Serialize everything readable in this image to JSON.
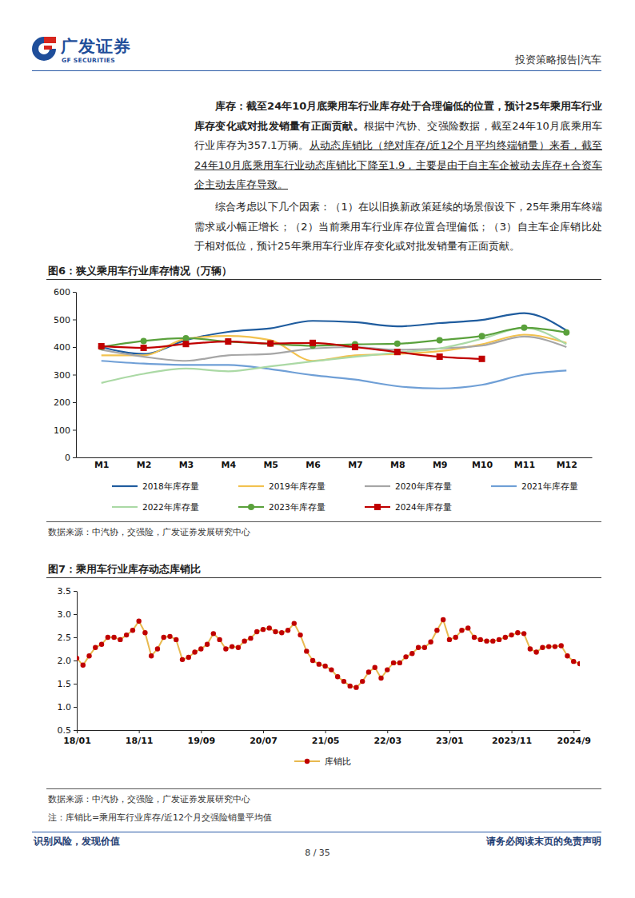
{
  "header": {
    "logo_cn": "广发证券",
    "logo_en": "GF SECURITIES",
    "report_type": "投资策略报告|汽车"
  },
  "paragraphs": [
    {
      "bold": "库存：截至24年10月底乘用车行业库存处于合理偏低的位置，预计25年乘用车行业库存变化或对批发销量有正面贡献。",
      "normal": "根据中汽协、交强险数据，截至24年10月底乘用车行业库存为357.1万辆。",
      "underline": "从动态库销比（绝对库存/近12个月平均终端销量）来看，截至24年10月底乘用车行业动态库销比下降至1.9，主要是由于自主车企被动去库存+合资车企主动去库存导致。"
    },
    {
      "text": "综合考虑以下几个因素：（1）在以旧换新政策延续的场景假设下，25年乘用车终端需求或小幅正增长；（2）当前乘用车行业库存位置合理偏低；（3）自主车企库销比处于相对低位，预计25年乘用车行业库存变化或对批发销量有正面贡献。"
    }
  ],
  "footer": {
    "left": "识别风险，发现价值",
    "page": "8 / 35",
    "right": "请务必阅读末页的免责声明"
  },
  "chart_data": [
    {
      "type": "line",
      "title": "图6：狭义乘用车行业库存情况（万辆）",
      "source": "数据来源：中汽协，交强险，广发证券发展研究中心",
      "categories": [
        "M1",
        "M2",
        "M3",
        "M4",
        "M5",
        "M6",
        "M7",
        "M8",
        "M9",
        "M10",
        "M11",
        "M12"
      ],
      "series": [
        {
          "name": "2018年库存量",
          "color": "#1f5c9e",
          "values": [
            400,
            375,
            425,
            455,
            468,
            495,
            490,
            475,
            487,
            498,
            523,
            460
          ]
        },
        {
          "name": "2019年库存量",
          "color": "#f2c24f",
          "values": [
            370,
            370,
            430,
            440,
            425,
            350,
            370,
            375,
            385,
            410,
            445,
            415
          ]
        },
        {
          "name": "2020年库存量",
          "color": "#a6a6a6",
          "values": [
            390,
            365,
            350,
            370,
            375,
            395,
            400,
            390,
            395,
            405,
            438,
            400
          ]
        },
        {
          "name": "2021年库存量",
          "color": "#6f9fd6",
          "values": [
            350,
            340,
            335,
            335,
            320,
            298,
            282,
            258,
            250,
            263,
            300,
            315
          ]
        },
        {
          "name": "2022年库存量",
          "color": "#abd9a5",
          "values": [
            270,
            303,
            322,
            312,
            330,
            348,
            365,
            380,
            395,
            430,
            470,
            410
          ]
        },
        {
          "name": "2023年库存量",
          "color": "#5aa13c",
          "marker": "circle",
          "values": [
            400,
            422,
            432,
            420,
            412,
            405,
            410,
            412,
            425,
            440,
            470,
            453
          ]
        },
        {
          "name": "2024年库存量",
          "color": "#c00000",
          "marker": "square",
          "values": [
            403,
            397,
            411,
            420,
            413,
            415,
            400,
            382,
            365,
            357.1,
            null,
            null
          ]
        }
      ],
      "ylim": [
        0,
        600
      ],
      "yticks": [
        0,
        100,
        200,
        300,
        400,
        500,
        600
      ],
      "grid": false,
      "legend": "bottom"
    },
    {
      "type": "line",
      "title": "图7：乘用车行业库存动态库销比",
      "source": "数据来源：中汽协，交强险，广发证券发展研究中心",
      "note": "注：库销比=乘用车行业库存/近12个月交强险销量平均值",
      "categories": [
        "18/01",
        null,
        null,
        null,
        null,
        null,
        null,
        null,
        null,
        null,
        "18/11",
        null,
        null,
        null,
        null,
        null,
        null,
        null,
        null,
        null,
        "19/09",
        null,
        null,
        null,
        null,
        null,
        null,
        null,
        null,
        null,
        "20/07",
        null,
        null,
        null,
        null,
        null,
        null,
        null,
        null,
        null,
        "21/05",
        null,
        null,
        null,
        null,
        null,
        null,
        null,
        null,
        null,
        "22/03",
        null,
        null,
        null,
        null,
        null,
        null,
        null,
        null,
        null,
        "23/01",
        null,
        null,
        null,
        null,
        null,
        null,
        null,
        null,
        null,
        "2023/11",
        null,
        null,
        null,
        null,
        null,
        null,
        null,
        null,
        null,
        "2024/9",
        null
      ],
      "series": [
        {
          "name": "库销比",
          "color": "#e8b94f",
          "marker": "circle",
          "values": [
            2.05,
            1.9,
            2.1,
            2.28,
            2.35,
            2.5,
            2.5,
            2.45,
            2.55,
            2.65,
            2.85,
            2.6,
            2.1,
            2.25,
            2.5,
            2.52,
            2.45,
            2.02,
            2.07,
            2.18,
            2.25,
            2.35,
            2.58,
            2.45,
            2.25,
            2.3,
            2.28,
            2.42,
            2.48,
            2.62,
            2.67,
            2.7,
            2.62,
            2.6,
            2.65,
            2.8,
            2.55,
            2.2,
            2.0,
            1.92,
            1.88,
            1.8,
            1.65,
            1.55,
            1.45,
            1.42,
            1.55,
            1.75,
            1.85,
            1.62,
            1.8,
            1.95,
            1.95,
            2.08,
            2.15,
            2.28,
            2.28,
            2.4,
            2.65,
            2.88,
            2.45,
            2.5,
            2.65,
            2.7,
            2.5,
            2.45,
            2.42,
            2.42,
            2.45,
            2.5,
            2.55,
            2.6,
            2.58,
            2.25,
            2.18,
            2.28,
            2.3,
            2.3,
            2.32,
            2.1,
            1.98,
            1.93
          ]
        }
      ],
      "ylim": [
        0.5,
        3.5
      ],
      "yticks": [
        0.5,
        {
          "value": 1,
          "label": "1.0"
        },
        1.5,
        {
          "value": 2,
          "label": "2.0"
        },
        2.5,
        {
          "value": 3,
          "label": "3.0"
        },
        3.5
      ],
      "grid": false,
      "legend": "bottom"
    }
  ]
}
